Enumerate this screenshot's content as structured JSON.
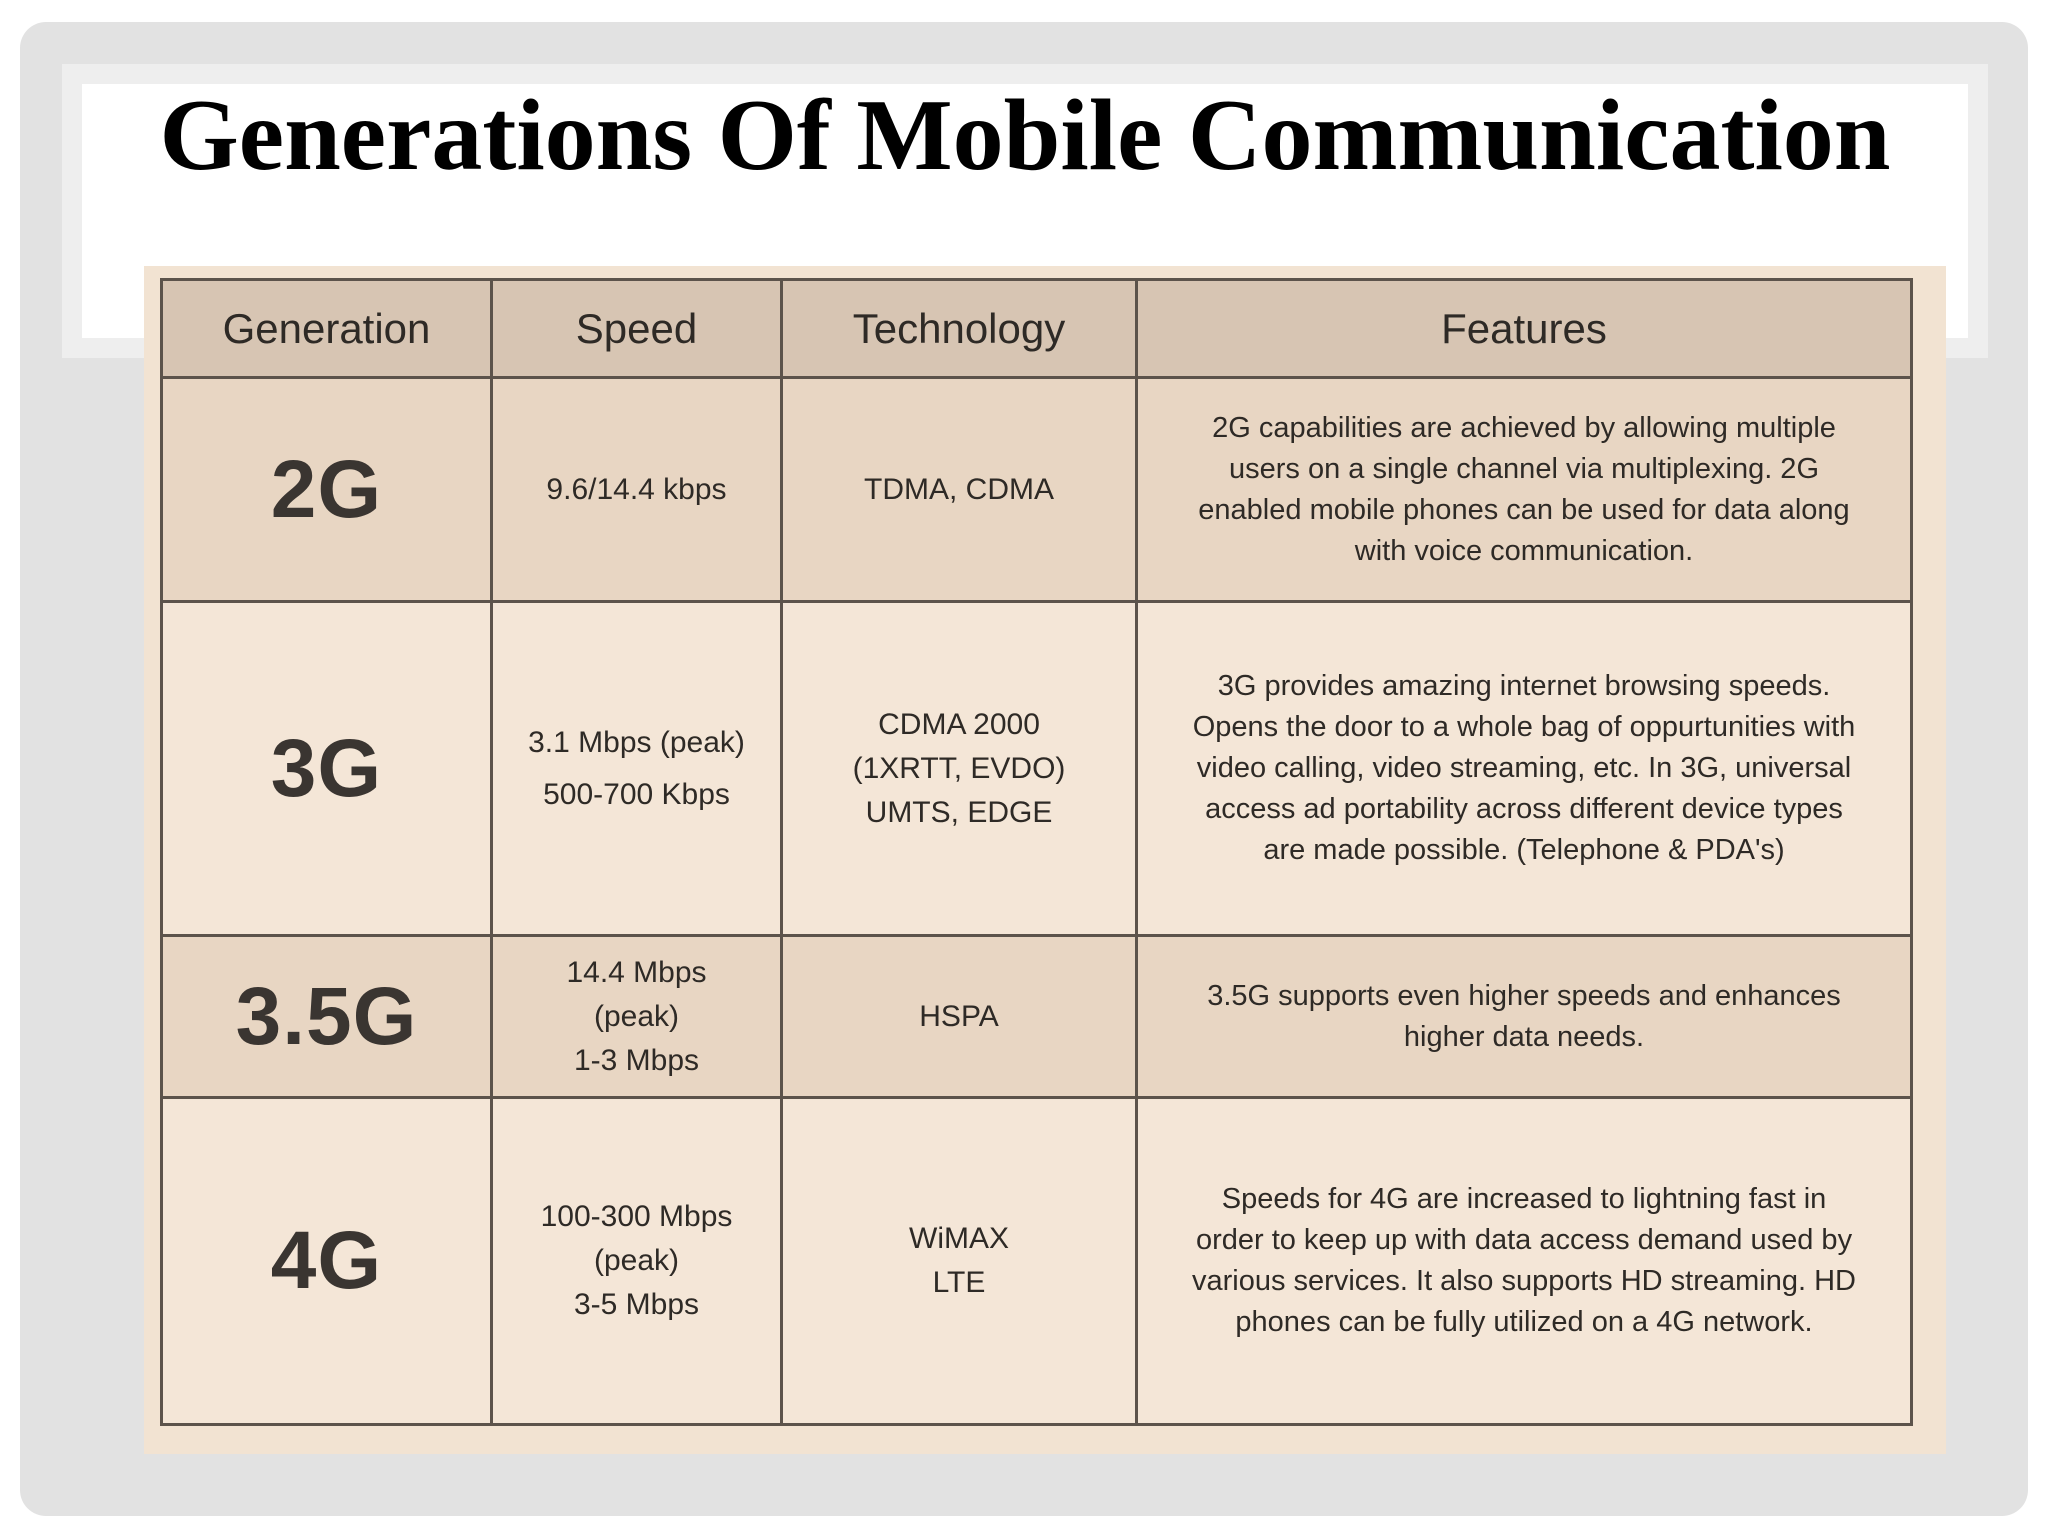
{
  "title": "Generations Of Mobile Communication",
  "table": {
    "headers": [
      "Generation",
      "Speed",
      "Technology",
      "Features"
    ],
    "rows": [
      {
        "generation": "2G",
        "speed": [
          "9.6/14.4 kbps"
        ],
        "technology": [
          "TDMA, CDMA"
        ],
        "features": [
          "2G capabilities are achieved by allowing multiple",
          "users on a single channel via multiplexing. 2G",
          "enabled mobile phones can be used for data along",
          "with voice communication."
        ]
      },
      {
        "generation": "3G",
        "speed": [
          "3.1 Mbps (peak)",
          "500-700 Kbps"
        ],
        "technology": [
          "CDMA 2000",
          "(1XRTT, EVDO)",
          "UMTS, EDGE"
        ],
        "features": [
          "3G provides amazing internet browsing speeds.",
          "Opens the door to a whole bag of oppurtunities with",
          "video calling, video streaming, etc. In 3G, universal",
          "access ad portability across different device types",
          "are made possible. (Telephone & PDA's)"
        ]
      },
      {
        "generation": "3.5G",
        "speed": [
          "14.4 Mbps",
          "(peak)",
          "1-3 Mbps"
        ],
        "technology": [
          "HSPA"
        ],
        "features": [
          "3.5G supports even higher speeds and enhances",
          "higher data needs."
        ]
      },
      {
        "generation": "4G",
        "speed": [
          "100-300 Mbps",
          "(peak)",
          "3-5 Mbps"
        ],
        "technology": [
          "WiMAX",
          "LTE"
        ],
        "features": [
          "Speeds for 4G are increased to lightning fast in",
          "order to keep up with data access demand used by",
          "various services. It also supports HD streaming. HD",
          "phones can be fully utilized on a 4G network."
        ]
      }
    ]
  }
}
